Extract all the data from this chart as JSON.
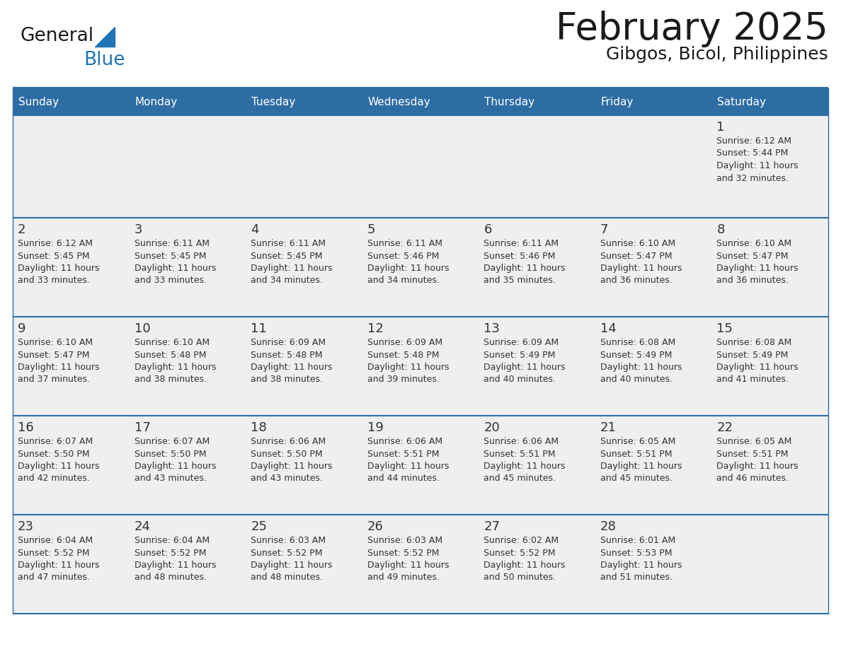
{
  "title": "February 2025",
  "subtitle": "Gibgos, Bicol, Philippines",
  "days_of_week": [
    "Sunday",
    "Monday",
    "Tuesday",
    "Wednesday",
    "Thursday",
    "Friday",
    "Saturday"
  ],
  "header_bg": "#2E6DA4",
  "header_text": "#FFFFFF",
  "cell_bg": "#EFEFEF",
  "cell_bg_empty": "#F5F5F5",
  "divider_color": "#2E6DA4",
  "text_color": "#333333",
  "day_number_color": "#333333",
  "logo_general_color": "#1a1a1a",
  "logo_blue_color": "#2175B5",
  "logo_triangle_color": "#2175B5",
  "calendar_data": [
    [
      null,
      null,
      null,
      null,
      null,
      null,
      {
        "day": 1,
        "sunrise": "6:12 AM",
        "sunset": "5:44 PM",
        "daylight": "11 hours and 32 minutes."
      }
    ],
    [
      {
        "day": 2,
        "sunrise": "6:12 AM",
        "sunset": "5:45 PM",
        "daylight": "11 hours and 33 minutes."
      },
      {
        "day": 3,
        "sunrise": "6:11 AM",
        "sunset": "5:45 PM",
        "daylight": "11 hours and 33 minutes."
      },
      {
        "day": 4,
        "sunrise": "6:11 AM",
        "sunset": "5:45 PM",
        "daylight": "11 hours and 34 minutes."
      },
      {
        "day": 5,
        "sunrise": "6:11 AM",
        "sunset": "5:46 PM",
        "daylight": "11 hours and 34 minutes."
      },
      {
        "day": 6,
        "sunrise": "6:11 AM",
        "sunset": "5:46 PM",
        "daylight": "11 hours and 35 minutes."
      },
      {
        "day": 7,
        "sunrise": "6:10 AM",
        "sunset": "5:47 PM",
        "daylight": "11 hours and 36 minutes."
      },
      {
        "day": 8,
        "sunrise": "6:10 AM",
        "sunset": "5:47 PM",
        "daylight": "11 hours and 36 minutes."
      }
    ],
    [
      {
        "day": 9,
        "sunrise": "6:10 AM",
        "sunset": "5:47 PM",
        "daylight": "11 hours and 37 minutes."
      },
      {
        "day": 10,
        "sunrise": "6:10 AM",
        "sunset": "5:48 PM",
        "daylight": "11 hours and 38 minutes."
      },
      {
        "day": 11,
        "sunrise": "6:09 AM",
        "sunset": "5:48 PM",
        "daylight": "11 hours and 38 minutes."
      },
      {
        "day": 12,
        "sunrise": "6:09 AM",
        "sunset": "5:48 PM",
        "daylight": "11 hours and 39 minutes."
      },
      {
        "day": 13,
        "sunrise": "6:09 AM",
        "sunset": "5:49 PM",
        "daylight": "11 hours and 40 minutes."
      },
      {
        "day": 14,
        "sunrise": "6:08 AM",
        "sunset": "5:49 PM",
        "daylight": "11 hours and 40 minutes."
      },
      {
        "day": 15,
        "sunrise": "6:08 AM",
        "sunset": "5:49 PM",
        "daylight": "11 hours and 41 minutes."
      }
    ],
    [
      {
        "day": 16,
        "sunrise": "6:07 AM",
        "sunset": "5:50 PM",
        "daylight": "11 hours and 42 minutes."
      },
      {
        "day": 17,
        "sunrise": "6:07 AM",
        "sunset": "5:50 PM",
        "daylight": "11 hours and 43 minutes."
      },
      {
        "day": 18,
        "sunrise": "6:06 AM",
        "sunset": "5:50 PM",
        "daylight": "11 hours and 43 minutes."
      },
      {
        "day": 19,
        "sunrise": "6:06 AM",
        "sunset": "5:51 PM",
        "daylight": "11 hours and 44 minutes."
      },
      {
        "day": 20,
        "sunrise": "6:06 AM",
        "sunset": "5:51 PM",
        "daylight": "11 hours and 45 minutes."
      },
      {
        "day": 21,
        "sunrise": "6:05 AM",
        "sunset": "5:51 PM",
        "daylight": "11 hours and 45 minutes."
      },
      {
        "day": 22,
        "sunrise": "6:05 AM",
        "sunset": "5:51 PM",
        "daylight": "11 hours and 46 minutes."
      }
    ],
    [
      {
        "day": 23,
        "sunrise": "6:04 AM",
        "sunset": "5:52 PM",
        "daylight": "11 hours and 47 minutes."
      },
      {
        "day": 24,
        "sunrise": "6:04 AM",
        "sunset": "5:52 PM",
        "daylight": "11 hours and 48 minutes."
      },
      {
        "day": 25,
        "sunrise": "6:03 AM",
        "sunset": "5:52 PM",
        "daylight": "11 hours and 48 minutes."
      },
      {
        "day": 26,
        "sunrise": "6:03 AM",
        "sunset": "5:52 PM",
        "daylight": "11 hours and 49 minutes."
      },
      {
        "day": 27,
        "sunrise": "6:02 AM",
        "sunset": "5:52 PM",
        "daylight": "11 hours and 50 minutes."
      },
      {
        "day": 28,
        "sunrise": "6:01 AM",
        "sunset": "5:53 PM",
        "daylight": "11 hours and 51 minutes."
      },
      null
    ]
  ]
}
